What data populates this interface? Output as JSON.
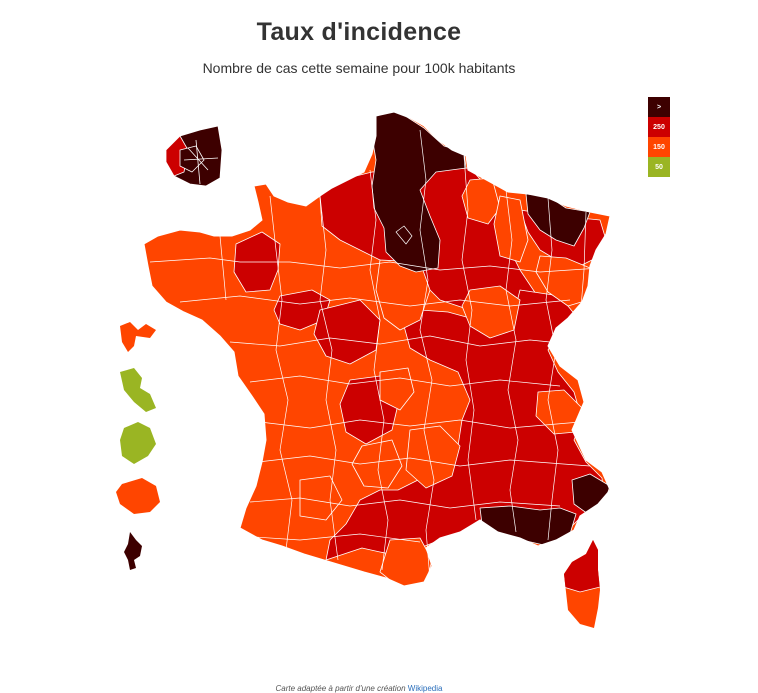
{
  "header": {
    "title": "Taux d'incidence",
    "subtitle": "Nombre de cas cette semaine pour 100k habitants"
  },
  "legend": {
    "items": [
      {
        "label": ">",
        "color": "#3d0000"
      },
      {
        "label": "250",
        "color": "#cc0000"
      },
      {
        "label": "150",
        "color": "#ff4500"
      },
      {
        "label": "50",
        "color": "#9ab523"
      }
    ]
  },
  "colors": {
    "very_high": "#3d0000",
    "high": "#cc0000",
    "medium": "#ff4500",
    "low": "#9ab523"
  },
  "footer": {
    "text": "Carte adaptée à partir d'une création",
    "link": "Wikipedia"
  }
}
